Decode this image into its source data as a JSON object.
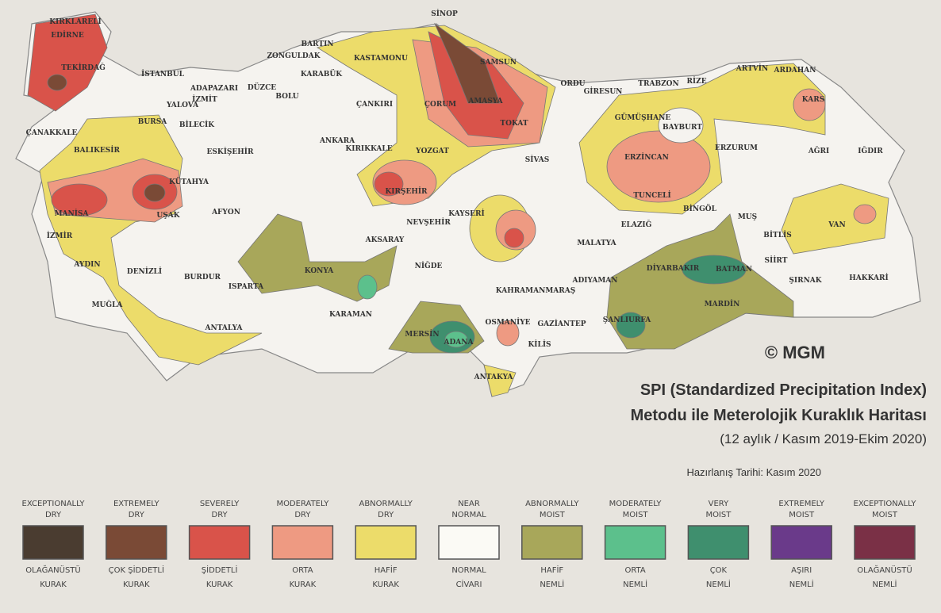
{
  "map": {
    "title": "SPI (Standardized Precipitation Index)",
    "subtitle": "Metodu ile Meterolojik Kuraklık Haritası",
    "period": "(12 aylık / Kasım 2019-Ekim 2020)",
    "prepared": "Hazırlanış Tarihi: Kasım 2020",
    "copyright": "© MGM",
    "cities": [
      "KIRKLARELİ",
      "EDİRNE",
      "TEKİRDAĞ",
      "İSTANBUL",
      "ÇANAKKALE",
      "BALIKESİR",
      "MANİSA",
      "İZMİR",
      "AYDIN",
      "MUĞLA",
      "DENİZLİ",
      "BURDUR",
      "ISPARTA",
      "ANTALYA",
      "AFYON",
      "KÜTAHYA",
      "UŞAK",
      "BURSA",
      "YALOVA",
      "BİLECİK",
      "ESKİŞEHİR",
      "ADAPAZARI",
      "İZMİT",
      "DÜZCE",
      "BOLU",
      "ZONGULDAK",
      "BARTIN",
      "KARABÜK",
      "KASTAMONU",
      "ÇANKIRI",
      "SİNOP",
      "SAMSUN",
      "ÇORUM",
      "AMASYA",
      "TOKAT",
      "ANKARA",
      "KIRIKKALE",
      "YOZGAT",
      "KIRŞEHİR",
      "NEVŞEHİR",
      "KAYSERİ",
      "SİVAS",
      "AKSARAY",
      "NİĞDE",
      "KONYA",
      "KARAMAN",
      "MERSİN",
      "ADANA",
      "OSMANİYE",
      "GAZİANTEP",
      "KİLİS",
      "ANTAKYA",
      "KAHRAMANMARAŞ",
      "ADIYAMAN",
      "ŞANLIURFA",
      "MALATYA",
      "ELAZIĞ",
      "TUNCELİ",
      "BİNGÖL",
      "MUŞ",
      "DİYARBAKIR",
      "BATMAN",
      "SİİRT",
      "MARDİN",
      "ŞIRNAK",
      "HAKKARİ",
      "BİTLİS",
      "VAN",
      "ERZİNCAN",
      "ERZURUM",
      "GÜMÜŞHANE",
      "BAYBURT",
      "TRABZON",
      "RİZE",
      "ORDU",
      "GİRESUN",
      "ARTVİN",
      "ARDAHAN",
      "KARS",
      "AĞRI",
      "IĞDIR"
    ]
  },
  "legend": [
    {
      "english": [
        "EXCEPTIONALLY",
        "DRY"
      ],
      "turkish": [
        "OLAĞANÜSTÜ",
        "KURAK"
      ],
      "color": "#4a3c30"
    },
    {
      "english": [
        "EXTREMELY",
        "DRY"
      ],
      "turkish": [
        "ÇOK ŞİDDETLİ",
        "KURAK"
      ],
      "color": "#7a4a36"
    },
    {
      "english": [
        "SEVERELY",
        "DRY"
      ],
      "turkish": [
        "ŞİDDETLİ",
        "KURAK"
      ],
      "color": "#d9534a"
    },
    {
      "english": [
        "MODERATELY",
        "DRY"
      ],
      "turkish": [
        "ORTA",
        "KURAK"
      ],
      "color": "#ee9a82"
    },
    {
      "english": [
        "ABNORMALLY",
        "DRY"
      ],
      "turkish": [
        "HAFİF",
        "KURAK"
      ],
      "color": "#ecdc6a"
    },
    {
      "english": [
        "NEAR",
        "NORMAL"
      ],
      "turkish": [
        "NORMAL",
        "CİVARI"
      ],
      "color": "#fbfaf5"
    },
    {
      "english": [
        "ABNORMALLY",
        "MOIST"
      ],
      "turkish": [
        "HAFİF",
        "NEMLİ"
      ],
      "color": "#a8a75a"
    },
    {
      "english": [
        "MODERATELY",
        "MOIST"
      ],
      "turkish": [
        "ORTA",
        "NEMLİ"
      ],
      "color": "#5cc08c"
    },
    {
      "english": [
        "VERY",
        "MOIST"
      ],
      "turkish": [
        "ÇOK",
        "NEMLİ"
      ],
      "color": "#3f8f6e"
    },
    {
      "english": [
        "EXTREMELY",
        "MOIST"
      ],
      "turkish": [
        "AŞIRI",
        "NEMLİ"
      ],
      "color": "#6a3a8a"
    },
    {
      "english": [
        "EXCEPTIONALLY",
        "MOIST"
      ],
      "turkish": [
        "OLAĞANÜSTÜ",
        "NEMLİ"
      ],
      "color": "#7a3046"
    }
  ]
}
